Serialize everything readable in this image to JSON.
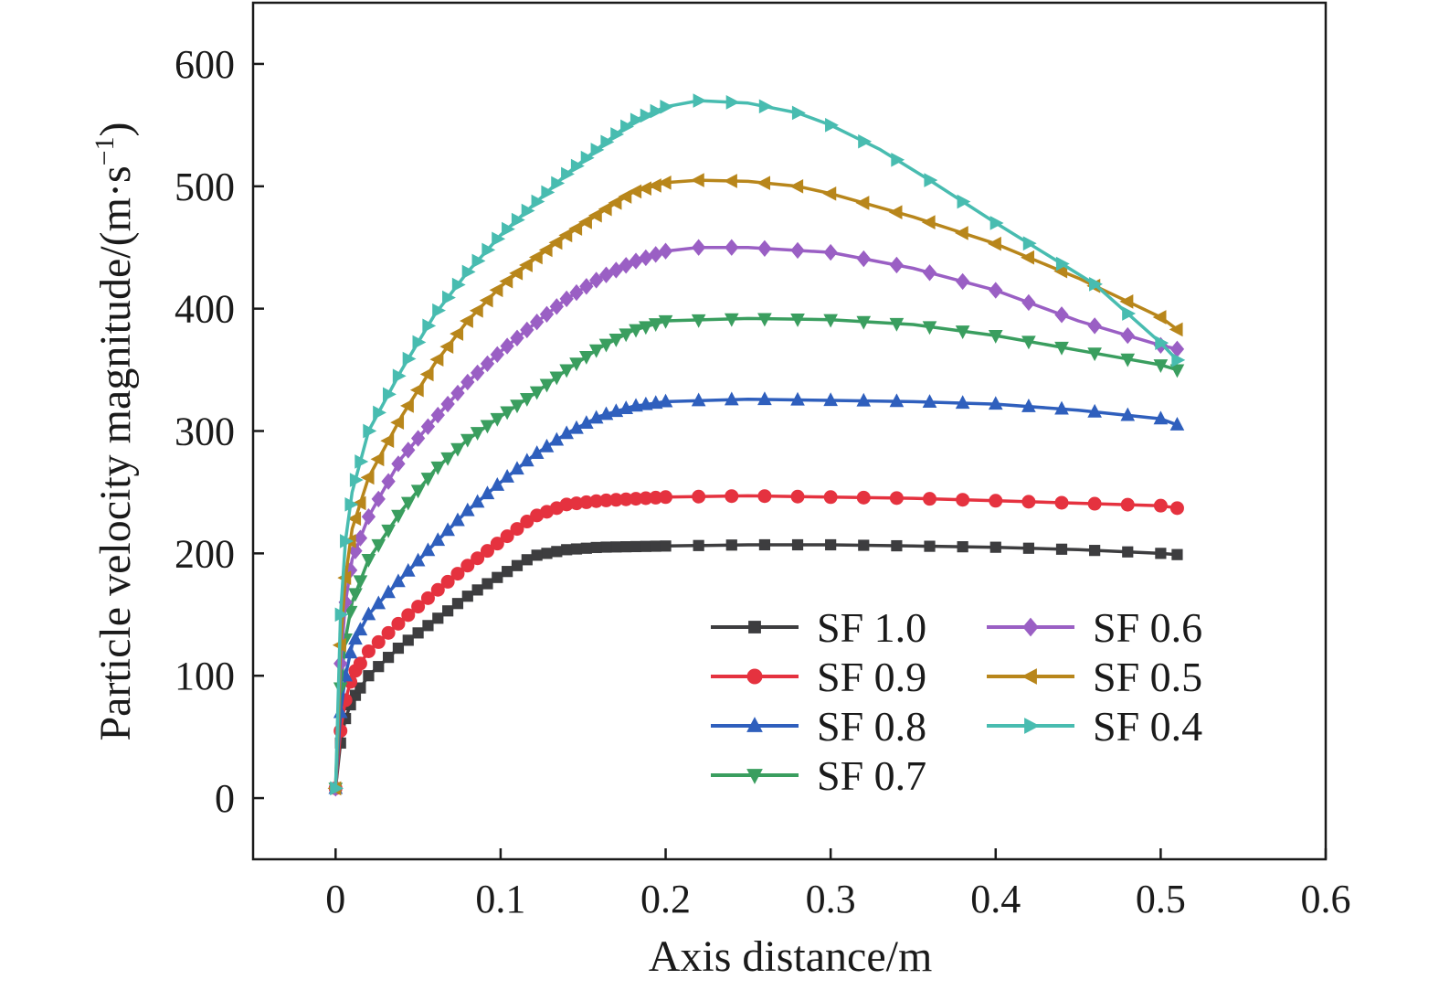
{
  "chart_data": {
    "type": "line",
    "xlabel": "Axis distance/m",
    "ylabel": "Particle velocity magnitude/(m·s",
    "ylabel_sup": "−1",
    "ylabel_end": ")",
    "xlim": [
      -0.05,
      0.6
    ],
    "ylim": [
      -50,
      650
    ],
    "xticks": [
      0,
      0.1,
      0.2,
      0.3,
      0.4,
      0.5,
      0.6
    ],
    "xtick_labels": [
      "0",
      "0.1",
      "0.2",
      "0.3",
      "0.4",
      "0.5",
      "0.6"
    ],
    "yticks": [
      0,
      100,
      200,
      300,
      400,
      500,
      600
    ],
    "ytick_labels": [
      "0",
      "100",
      "200",
      "300",
      "400",
      "500",
      "600"
    ],
    "grid": false,
    "legend_position": "bottom-right",
    "series": [
      {
        "name": "SF 1.0",
        "color": "#3d3d3f",
        "marker": "square",
        "x": [
          0,
          0.003,
          0.006,
          0.01,
          0.02,
          0.04,
          0.06,
          0.08,
          0.1,
          0.12,
          0.14,
          0.16,
          0.2,
          0.25,
          0.3,
          0.35,
          0.4,
          0.45,
          0.5,
          0.51
        ],
        "y": [
          8,
          45,
          65,
          80,
          100,
          125,
          145,
          165,
          182,
          198,
          203,
          205,
          206,
          207,
          207,
          206,
          205,
          203,
          200,
          199
        ]
      },
      {
        "name": "SF 0.9",
        "color": "#e5323f",
        "marker": "circle",
        "x": [
          0,
          0.003,
          0.006,
          0.01,
          0.02,
          0.04,
          0.06,
          0.08,
          0.1,
          0.12,
          0.14,
          0.16,
          0.2,
          0.25,
          0.3,
          0.35,
          0.4,
          0.45,
          0.5,
          0.51
        ],
        "y": [
          8,
          55,
          80,
          100,
          120,
          145,
          168,
          190,
          210,
          230,
          240,
          243,
          246,
          247,
          246,
          245,
          243,
          241,
          239,
          237
        ]
      },
      {
        "name": "SF 0.8",
        "color": "#2f5fbd",
        "marker": "triangle-up",
        "x": [
          0,
          0.003,
          0.006,
          0.01,
          0.02,
          0.04,
          0.06,
          0.08,
          0.1,
          0.12,
          0.14,
          0.16,
          0.18,
          0.2,
          0.25,
          0.3,
          0.35,
          0.4,
          0.45,
          0.5,
          0.51
        ],
        "y": [
          8,
          70,
          100,
          125,
          150,
          180,
          208,
          235,
          258,
          280,
          298,
          312,
          320,
          324,
          326,
          325,
          324,
          322,
          317,
          310,
          305
        ]
      },
      {
        "name": "SF 0.7",
        "color": "#3a9e5f",
        "marker": "triangle-down",
        "x": [
          0,
          0.003,
          0.006,
          0.01,
          0.02,
          0.04,
          0.06,
          0.08,
          0.1,
          0.12,
          0.14,
          0.16,
          0.18,
          0.2,
          0.25,
          0.3,
          0.35,
          0.4,
          0.45,
          0.5,
          0.51
        ],
        "y": [
          8,
          90,
          130,
          160,
          195,
          235,
          268,
          293,
          312,
          330,
          350,
          368,
          382,
          390,
          392,
          391,
          387,
          378,
          366,
          354,
          350
        ]
      },
      {
        "name": "SF 0.6",
        "color": "#9a5fc4",
        "marker": "diamond",
        "x": [
          0,
          0.003,
          0.006,
          0.01,
          0.02,
          0.04,
          0.06,
          0.08,
          0.1,
          0.12,
          0.14,
          0.16,
          0.18,
          0.2,
          0.22,
          0.25,
          0.3,
          0.35,
          0.4,
          0.45,
          0.5,
          0.51
        ],
        "y": [
          8,
          110,
          160,
          195,
          230,
          278,
          310,
          340,
          365,
          387,
          408,
          425,
          438,
          447,
          450,
          450,
          446,
          433,
          415,
          390,
          370,
          367
        ]
      },
      {
        "name": "SF 0.5",
        "color": "#b8861b",
        "marker": "triangle-left",
        "x": [
          0,
          0.003,
          0.006,
          0.01,
          0.02,
          0.04,
          0.06,
          0.08,
          0.1,
          0.12,
          0.14,
          0.16,
          0.18,
          0.2,
          0.22,
          0.25,
          0.28,
          0.3,
          0.35,
          0.4,
          0.45,
          0.5,
          0.51
        ],
        "y": [
          8,
          125,
          180,
          220,
          262,
          312,
          355,
          390,
          418,
          440,
          460,
          478,
          495,
          503,
          505,
          504,
          500,
          494,
          475,
          453,
          425,
          393,
          383
        ]
      },
      {
        "name": "SF 0.4",
        "color": "#48bcb0",
        "marker": "triangle-right",
        "x": [
          0,
          0.003,
          0.006,
          0.01,
          0.02,
          0.04,
          0.06,
          0.08,
          0.1,
          0.12,
          0.14,
          0.16,
          0.18,
          0.2,
          0.22,
          0.25,
          0.28,
          0.3,
          0.33,
          0.36,
          0.4,
          0.43,
          0.46,
          0.5,
          0.51
        ],
        "y": [
          8,
          150,
          210,
          250,
          300,
          350,
          395,
          430,
          460,
          485,
          510,
          532,
          553,
          565,
          570,
          568,
          560,
          550,
          530,
          505,
          470,
          445,
          420,
          372,
          358
        ]
      }
    ]
  }
}
